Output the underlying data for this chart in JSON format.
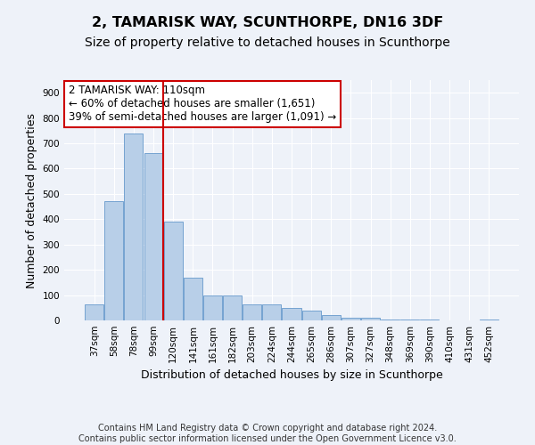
{
  "title": "2, TAMARISK WAY, SCUNTHORPE, DN16 3DF",
  "subtitle": "Size of property relative to detached houses in Scunthorpe",
  "xlabel": "Distribution of detached houses by size in Scunthorpe",
  "ylabel": "Number of detached properties",
  "categories": [
    "37sqm",
    "58sqm",
    "78sqm",
    "99sqm",
    "120sqm",
    "141sqm",
    "161sqm",
    "182sqm",
    "203sqm",
    "224sqm",
    "244sqm",
    "265sqm",
    "286sqm",
    "307sqm",
    "327sqm",
    "348sqm",
    "369sqm",
    "390sqm",
    "410sqm",
    "431sqm",
    "452sqm"
  ],
  "values": [
    65,
    470,
    740,
    660,
    390,
    170,
    100,
    100,
    65,
    65,
    50,
    40,
    20,
    10,
    10,
    5,
    5,
    5,
    0,
    0,
    5
  ],
  "bar_color": "#b8cfe8",
  "bar_edge_color": "#6699cc",
  "vline_x": 3.5,
  "vline_color": "#cc0000",
  "ylim": [
    0,
    950
  ],
  "yticks": [
    0,
    100,
    200,
    300,
    400,
    500,
    600,
    700,
    800,
    900
  ],
  "annotation_text": "2 TAMARISK WAY: 110sqm\n← 60% of detached houses are smaller (1,651)\n39% of semi-detached houses are larger (1,091) →",
  "annotation_box_color": "#ffffff",
  "annotation_box_edge_color": "#cc0000",
  "footer_text": "Contains HM Land Registry data © Crown copyright and database right 2024.\nContains public sector information licensed under the Open Government Licence v3.0.",
  "title_fontsize": 11.5,
  "subtitle_fontsize": 10,
  "axis_label_fontsize": 9,
  "tick_fontsize": 7.5,
  "annotation_fontsize": 8.5,
  "footer_fontsize": 7,
  "background_color": "#eef2f9",
  "grid_color": "#ffffff"
}
